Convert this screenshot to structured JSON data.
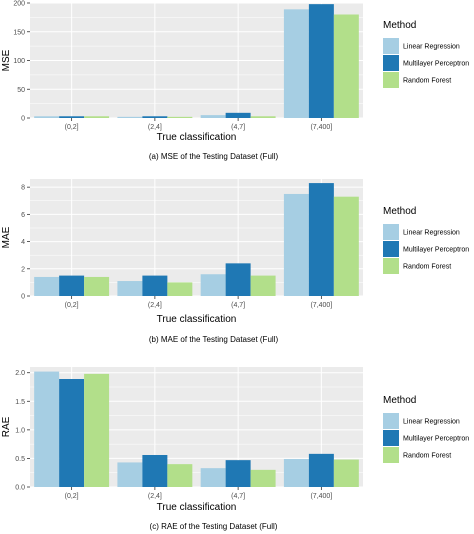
{
  "colors": {
    "linear_regression": "#a6cee3",
    "multilayer_perceptron": "#1f78b4",
    "random_forest": "#b2df8a",
    "panel_background": "#ebebeb",
    "grid": "#ffffff"
  },
  "chart_data": [
    {
      "type": "bar",
      "categories": [
        "(0,2]",
        "(2,4]",
        "(4,7]",
        "(7,400]"
      ],
      "series": [
        {
          "name": "Linear Regression",
          "values": [
            3,
            2,
            5,
            189
          ]
        },
        {
          "name": "Multilayer Perceptron",
          "values": [
            3,
            3,
            9,
            198
          ]
        },
        {
          "name": "Random Forest",
          "values": [
            3,
            2,
            3,
            180
          ]
        }
      ],
      "xlabel": "True classification",
      "ylabel": "MSE",
      "ylim": [
        0,
        200
      ],
      "yticks": [
        0,
        50,
        100,
        150,
        200
      ],
      "caption": "(a) MSE of the Testing Dataset (Full)",
      "legend": {
        "title": "Method",
        "position": "right"
      },
      "grid": true
    },
    {
      "type": "bar",
      "categories": [
        "(0,2]",
        "(2,4]",
        "(4,7]",
        "(7,400]"
      ],
      "series": [
        {
          "name": "Linear Regression",
          "values": [
            1.4,
            1.1,
            1.6,
            7.5
          ]
        },
        {
          "name": "Multilayer Perceptron",
          "values": [
            1.5,
            1.5,
            2.4,
            8.3
          ]
        },
        {
          "name": "Random Forest",
          "values": [
            1.4,
            1.0,
            1.5,
            7.3
          ]
        }
      ],
      "xlabel": "True classification",
      "ylabel": "MAE",
      "ylim": [
        0,
        8.6
      ],
      "yticks": [
        0,
        2,
        4,
        6,
        8
      ],
      "caption": "(b) MAE of the Testing Dataset (Full)",
      "legend": {
        "title": "Method",
        "position": "right"
      },
      "grid": true
    },
    {
      "type": "bar",
      "categories": [
        "(0,2]",
        "(2,4]",
        "(4,7]",
        "(7,400]"
      ],
      "series": [
        {
          "name": "Linear Regression",
          "values": [
            2.02,
            0.43,
            0.33,
            0.49
          ]
        },
        {
          "name": "Multilayer Perceptron",
          "values": [
            1.89,
            0.56,
            0.47,
            0.58
          ]
        },
        {
          "name": "Random Forest",
          "values": [
            1.98,
            0.4,
            0.3,
            0.48
          ]
        }
      ],
      "xlabel": "True classification",
      "ylabel": "RAE",
      "ylim": [
        0,
        2.1
      ],
      "yticks": [
        "0.0",
        "0.5",
        "1.0",
        "1.5",
        "2.0"
      ],
      "caption": "(c) RAE of the Testing Dataset (Full)",
      "legend": {
        "title": "Method",
        "position": "right"
      },
      "grid": true
    }
  ]
}
